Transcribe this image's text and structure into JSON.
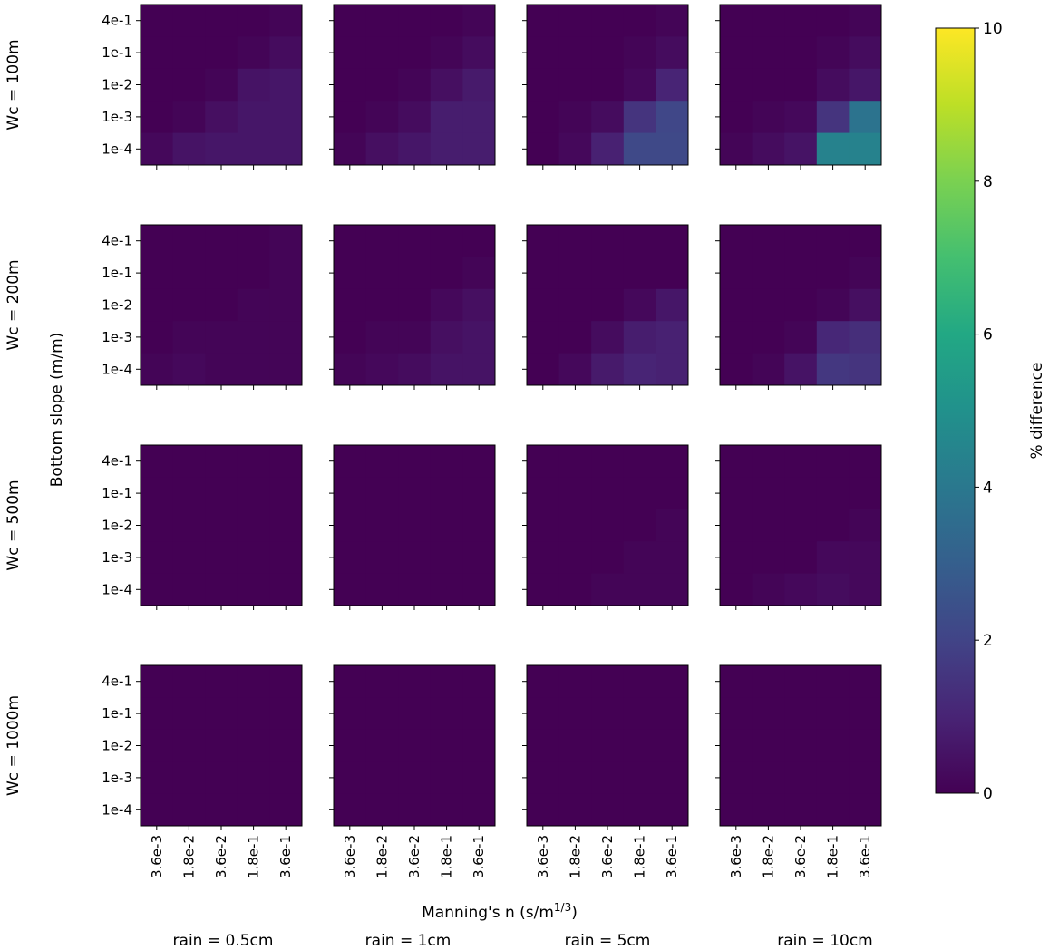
{
  "chart_data": {
    "type": "heatmap",
    "colormap": "viridis",
    "xlabel": "Manning's n (s/m",
    "xlabel_sup": "1/3",
    "xlabel_close": ")",
    "ylabel": "Bottom slope (m/m)",
    "x_ticklabels": [
      "3.6e-3",
      "1.8e-2",
      "3.6e-2",
      "1.8e-1",
      "3.6e-1"
    ],
    "y_ticklabels": [
      "4e-1",
      "1e-1",
      "1e-2",
      "1e-3",
      "1e-4"
    ],
    "row_labels": [
      "Wc = 100m",
      "Wc = 200m",
      "Wc = 500m",
      "Wc = 1000m"
    ],
    "col_labels": [
      "rain = 0.5cm",
      "rain = 1cm",
      "rain = 5cm",
      "rain = 10cm"
    ],
    "colorbar": {
      "label": "% difference",
      "range": [
        0,
        10
      ],
      "ticks": [
        "0",
        "2",
        "4",
        "6",
        "8",
        "10"
      ]
    },
    "panels": [
      [
        [
          [
            0.0,
            0.0,
            0.0,
            0.0,
            0.1
          ],
          [
            0.0,
            0.0,
            0.0,
            0.1,
            0.3
          ],
          [
            0.0,
            0.0,
            0.1,
            0.5,
            0.6
          ],
          [
            0.0,
            0.1,
            0.4,
            0.6,
            0.6
          ],
          [
            0.2,
            0.5,
            0.6,
            0.6,
            0.6
          ]
        ],
        [
          [
            0.0,
            0.0,
            0.0,
            0.0,
            0.1
          ],
          [
            0.0,
            0.0,
            0.0,
            0.1,
            0.3
          ],
          [
            0.0,
            0.0,
            0.1,
            0.4,
            0.7
          ],
          [
            0.0,
            0.1,
            0.3,
            0.8,
            0.8
          ],
          [
            0.1,
            0.4,
            0.6,
            0.8,
            0.8
          ]
        ],
        [
          [
            0.0,
            0.0,
            0.0,
            0.0,
            0.1
          ],
          [
            0.0,
            0.0,
            0.0,
            0.1,
            0.3
          ],
          [
            0.0,
            0.0,
            0.0,
            0.2,
            1.0
          ],
          [
            0.0,
            0.1,
            0.3,
            1.5,
            2.1
          ],
          [
            0.0,
            0.2,
            0.9,
            2.2,
            2.2
          ]
        ],
        [
          [
            0.0,
            0.0,
            0.0,
            0.0,
            0.1
          ],
          [
            0.0,
            0.0,
            0.0,
            0.1,
            0.3
          ],
          [
            0.0,
            0.0,
            0.0,
            0.3,
            0.6
          ],
          [
            0.0,
            0.1,
            0.2,
            1.5,
            3.8
          ],
          [
            0.1,
            0.3,
            0.5,
            4.4,
            4.4
          ]
        ]
      ],
      [
        [
          [
            0.0,
            0.0,
            0.0,
            0.0,
            0.1
          ],
          [
            0.0,
            0.0,
            0.0,
            0.0,
            0.1
          ],
          [
            0.0,
            0.0,
            0.0,
            0.1,
            0.1
          ],
          [
            0.0,
            0.1,
            0.1,
            0.1,
            0.1
          ],
          [
            0.1,
            0.2,
            0.1,
            0.1,
            0.1
          ]
        ],
        [
          [
            0.0,
            0.0,
            0.0,
            0.0,
            0.0
          ],
          [
            0.0,
            0.0,
            0.0,
            0.0,
            0.1
          ],
          [
            0.0,
            0.0,
            0.0,
            0.2,
            0.4
          ],
          [
            0.0,
            0.1,
            0.1,
            0.4,
            0.5
          ],
          [
            0.1,
            0.2,
            0.3,
            0.5,
            0.5
          ]
        ],
        [
          [
            0.0,
            0.0,
            0.0,
            0.0,
            0.0
          ],
          [
            0.0,
            0.0,
            0.0,
            0.0,
            0.0
          ],
          [
            0.0,
            0.0,
            0.0,
            0.2,
            0.6
          ],
          [
            0.0,
            0.0,
            0.3,
            0.8,
            0.9
          ],
          [
            0.0,
            0.2,
            0.7,
            1.0,
            0.9
          ]
        ],
        [
          [
            0.0,
            0.0,
            0.0,
            0.0,
            0.0
          ],
          [
            0.0,
            0.0,
            0.0,
            0.0,
            0.1
          ],
          [
            0.0,
            0.0,
            0.0,
            0.1,
            0.4
          ],
          [
            0.0,
            0.0,
            0.1,
            1.1,
            1.3
          ],
          [
            0.0,
            0.1,
            0.5,
            1.6,
            1.5
          ]
        ]
      ],
      [
        [
          [
            0.0,
            0.0,
            0.0,
            0.0,
            0.0
          ],
          [
            0.0,
            0.0,
            0.0,
            0.0,
            0.0
          ],
          [
            0.0,
            0.0,
            0.0,
            0.0,
            0.0
          ],
          [
            0.0,
            0.0,
            0.0,
            0.0,
            0.0
          ],
          [
            0.0,
            0.0,
            0.0,
            0.0,
            0.0
          ]
        ],
        [
          [
            0.0,
            0.0,
            0.0,
            0.0,
            0.0
          ],
          [
            0.0,
            0.0,
            0.0,
            0.0,
            0.0
          ],
          [
            0.0,
            0.0,
            0.0,
            0.0,
            0.0
          ],
          [
            0.0,
            0.0,
            0.0,
            0.0,
            0.0
          ],
          [
            0.0,
            0.0,
            0.0,
            0.0,
            0.0
          ]
        ],
        [
          [
            0.0,
            0.0,
            0.0,
            0.0,
            0.0
          ],
          [
            0.0,
            0.0,
            0.0,
            0.0,
            0.0
          ],
          [
            0.0,
            0.0,
            0.0,
            0.0,
            0.1
          ],
          [
            0.0,
            0.0,
            0.0,
            0.1,
            0.1
          ],
          [
            0.0,
            0.0,
            0.1,
            0.1,
            0.1
          ]
        ],
        [
          [
            0.0,
            0.0,
            0.0,
            0.0,
            0.0
          ],
          [
            0.0,
            0.0,
            0.0,
            0.0,
            0.0
          ],
          [
            0.0,
            0.0,
            0.0,
            0.0,
            0.1
          ],
          [
            0.0,
            0.0,
            0.0,
            0.2,
            0.2
          ],
          [
            0.0,
            0.1,
            0.2,
            0.3,
            0.2
          ]
        ]
      ],
      [
        [
          [
            0.0,
            0.0,
            0.0,
            0.0,
            0.0
          ],
          [
            0.0,
            0.0,
            0.0,
            0.0,
            0.0
          ],
          [
            0.0,
            0.0,
            0.0,
            0.0,
            0.0
          ],
          [
            0.0,
            0.0,
            0.0,
            0.0,
            0.0
          ],
          [
            0.0,
            0.0,
            0.0,
            0.0,
            0.0
          ]
        ],
        [
          [
            0.0,
            0.0,
            0.0,
            0.0,
            0.0
          ],
          [
            0.0,
            0.0,
            0.0,
            0.0,
            0.0
          ],
          [
            0.0,
            0.0,
            0.0,
            0.0,
            0.0
          ],
          [
            0.0,
            0.0,
            0.0,
            0.0,
            0.0
          ],
          [
            0.0,
            0.0,
            0.0,
            0.0,
            0.0
          ]
        ],
        [
          [
            0.0,
            0.0,
            0.0,
            0.0,
            0.0
          ],
          [
            0.0,
            0.0,
            0.0,
            0.0,
            0.0
          ],
          [
            0.0,
            0.0,
            0.0,
            0.0,
            0.0
          ],
          [
            0.0,
            0.0,
            0.0,
            0.0,
            0.0
          ],
          [
            0.0,
            0.0,
            0.0,
            0.0,
            0.0
          ]
        ],
        [
          [
            0.0,
            0.0,
            0.0,
            0.0,
            0.0
          ],
          [
            0.0,
            0.0,
            0.0,
            0.0,
            0.0
          ],
          [
            0.0,
            0.0,
            0.0,
            0.0,
            0.0
          ],
          [
            0.0,
            0.0,
            0.0,
            0.0,
            0.0
          ],
          [
            0.0,
            0.0,
            0.0,
            0.0,
            0.0
          ]
        ]
      ]
    ]
  }
}
